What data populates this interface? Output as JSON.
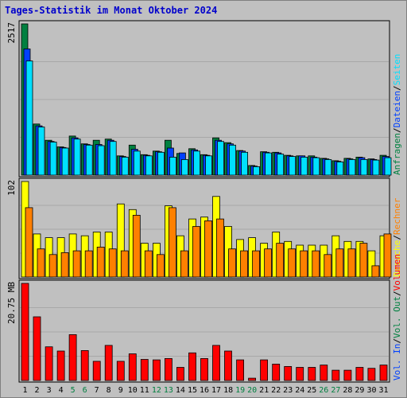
{
  "title": "Tages-Statistik im Monat Oktober 2024",
  "colors": {
    "background": "#c0c0c0",
    "hits": "#008040",
    "files": "#0040ff",
    "pages": "#00e0ff",
    "visits": "#ffff00",
    "sites": "#ff8000",
    "kbytes": "#ff0000",
    "weekend_label": "#008040",
    "weekday_label": "#000000"
  },
  "right_labels": {
    "panel1": [
      {
        "text": "Anfragen",
        "color": "#008040"
      },
      {
        "text": "Dateien",
        "color": "#0040ff"
      },
      {
        "text": "Seiten",
        "color": "#00e0ff"
      }
    ],
    "panel2": [
      {
        "text": "Besuche",
        "color": "#ffff00"
      },
      {
        "text": "Rechner",
        "color": "#ff8000"
      }
    ],
    "panel3": [
      {
        "text": "Vol. In",
        "color": "#0040ff"
      },
      {
        "text": "Vol. Out",
        "color": "#008040"
      },
      {
        "text": "Volumen",
        "color": "#ff0000"
      }
    ]
  },
  "chart_data": [
    {
      "type": "bar",
      "ymax_label": "2517",
      "ylim": [
        0,
        2517
      ],
      "categories": [
        "1",
        "2",
        "3",
        "4",
        "5",
        "6",
        "7",
        "8",
        "9",
        "10",
        "11",
        "12",
        "13",
        "14",
        "15",
        "16",
        "17",
        "18",
        "19",
        "20",
        "21",
        "22",
        "23",
        "24",
        "25",
        "26",
        "27",
        "28",
        "29",
        "30",
        "31"
      ],
      "weekend_days": [
        5,
        6,
        12,
        13,
        19,
        20,
        26,
        27
      ],
      "series": [
        {
          "name": "Anfragen",
          "color": "#008040",
          "values": [
            2517,
            850,
            580,
            470,
            650,
            520,
            580,
            600,
            320,
            500,
            340,
            400,
            580,
            360,
            440,
            340,
            620,
            540,
            410,
            160,
            390,
            380,
            330,
            320,
            320,
            280,
            240,
            280,
            300,
            270,
            330
          ]
        },
        {
          "name": "Dateien",
          "color": "#0040ff",
          "values": [
            2100,
            820,
            560,
            460,
            620,
            510,
            510,
            580,
            310,
            430,
            330,
            390,
            450,
            370,
            420,
            330,
            580,
            520,
            400,
            150,
            380,
            370,
            320,
            320,
            300,
            270,
            230,
            270,
            290,
            260,
            310
          ]
        },
        {
          "name": "Seiten",
          "color": "#00e0ff",
          "values": [
            1900,
            800,
            550,
            450,
            600,
            500,
            490,
            560,
            300,
            400,
            320,
            380,
            300,
            260,
            400,
            320,
            560,
            500,
            380,
            140,
            370,
            350,
            310,
            300,
            290,
            260,
            220,
            260,
            260,
            250,
            290
          ]
        }
      ]
    },
    {
      "type": "bar",
      "ymax_label": "102",
      "ylim": [
        0,
        102
      ],
      "categories": [
        "1",
        "2",
        "3",
        "4",
        "5",
        "6",
        "7",
        "8",
        "9",
        "10",
        "11",
        "12",
        "13",
        "14",
        "15",
        "16",
        "17",
        "18",
        "19",
        "20",
        "21",
        "22",
        "23",
        "24",
        "25",
        "26",
        "27",
        "28",
        "29",
        "30",
        "31"
      ],
      "series": [
        {
          "name": "Besuche",
          "color": "#ffff00",
          "values": [
            102,
            46,
            42,
            42,
            46,
            44,
            48,
            48,
            78,
            72,
            36,
            36,
            76,
            44,
            62,
            64,
            86,
            54,
            40,
            42,
            36,
            48,
            38,
            34,
            34,
            34,
            44,
            38,
            38,
            28,
            44
          ]
        },
        {
          "name": "Rechner",
          "color": "#ff8000",
          "values": [
            74,
            30,
            24,
            26,
            28,
            28,
            32,
            30,
            28,
            66,
            28,
            24,
            74,
            28,
            54,
            60,
            62,
            30,
            28,
            28,
            30,
            36,
            30,
            28,
            28,
            24,
            30,
            30,
            36,
            12,
            46
          ]
        }
      ]
    },
    {
      "type": "bar",
      "ymax_label": "20.75 MB",
      "ylim": [
        0,
        20.75
      ],
      "categories": [
        "1",
        "2",
        "3",
        "4",
        "5",
        "6",
        "7",
        "8",
        "9",
        "10",
        "11",
        "12",
        "13",
        "14",
        "15",
        "16",
        "17",
        "18",
        "19",
        "20",
        "21",
        "22",
        "23",
        "24",
        "25",
        "26",
        "27",
        "28",
        "29",
        "30",
        "31"
      ],
      "series": [
        {
          "name": "Volumen",
          "color": "#ff0000",
          "values": [
            20.75,
            13.6,
            7.2,
            6.3,
            9.8,
            6.4,
            4.1,
            7.5,
            4.1,
            5.7,
            4.5,
            4.4,
            4.7,
            2.8,
            5.9,
            4.7,
            7.5,
            6.3,
            4.4,
            0.5,
            4.4,
            3.5,
            3.0,
            2.8,
            2.8,
            3.3,
            2.2,
            2.2,
            2.8,
            2.6,
            3.3
          ]
        }
      ]
    }
  ]
}
